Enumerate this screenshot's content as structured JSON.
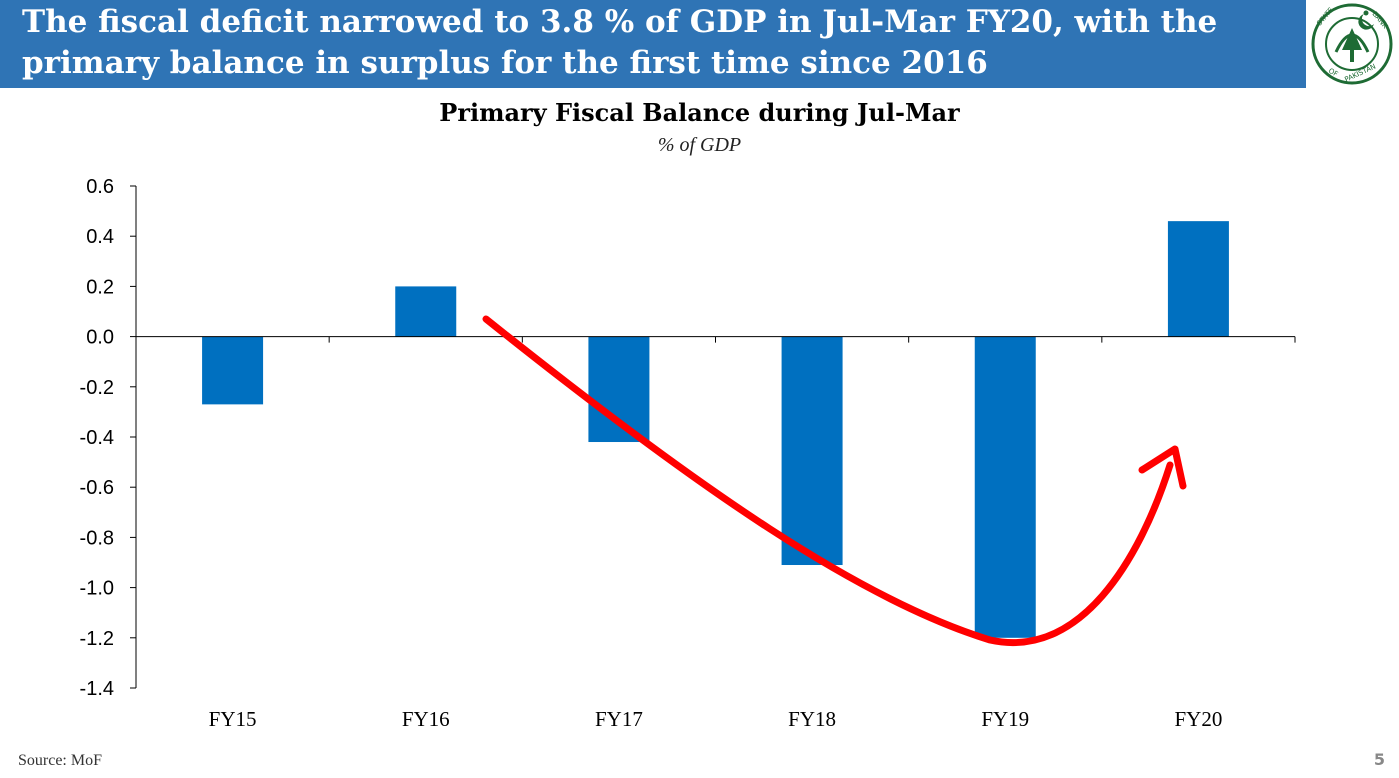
{
  "header": {
    "title": "The fiscal deficit narrowed to 3.8 % of GDP in Jul-Mar FY20, with the primary balance in surplus for the first time since 2016",
    "logo_text": [
      "STATE BANK OF PAKISTAN"
    ]
  },
  "colors": {
    "header_bg": "#2f74b5",
    "bar": "#0070c0",
    "arrow": "#ff0000",
    "logo_green": "#1e6b34"
  },
  "chart_data": {
    "type": "bar",
    "title": "Primary Fiscal Balance during Jul-Mar",
    "subtitle": "% of GDP",
    "categories": [
      "FY15",
      "FY16",
      "FY17",
      "FY18",
      "FY19",
      "FY20"
    ],
    "values": [
      -0.27,
      0.2,
      -0.42,
      -0.91,
      -1.2,
      0.46
    ],
    "ylim": [
      -1.4,
      0.6
    ],
    "yticks": [
      "0.6",
      "0.4",
      "0.2",
      "0.0",
      "-0.2",
      "-0.4",
      "-0.6",
      "-0.8",
      "-1.0",
      "-1.2",
      "-1.4"
    ],
    "grid": false,
    "annotation": "red curved arrow from FY16 down through FY19 and up to FY20"
  },
  "footer": {
    "source": "Source: MoF",
    "page": "5"
  }
}
